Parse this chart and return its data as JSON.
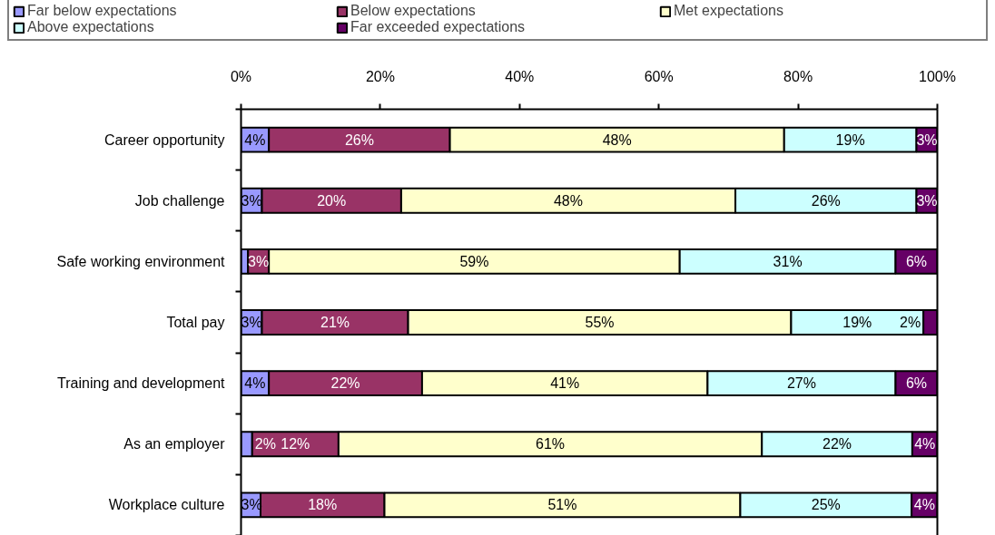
{
  "chart_data": {
    "type": "bar",
    "orientation": "horizontal",
    "stacked": true,
    "categories": [
      "Career opportunity",
      "Job challenge",
      "Safe working environment",
      "Total pay",
      "Training and development",
      "As an employer",
      "Workplace culture"
    ],
    "series": [
      {
        "name": "Far below expectations",
        "color": "#9999ff",
        "values": [
          4,
          3,
          1,
          3,
          4,
          1.6,
          2.8
        ],
        "value_labels": [
          "4%",
          "3%",
          null,
          "3%",
          "4%",
          "2%",
          "3%"
        ]
      },
      {
        "name": "Below expectations",
        "color": "#993366",
        "values": [
          26,
          20,
          3,
          21,
          22,
          12.4,
          17.8
        ],
        "value_labels": [
          "26%",
          "20%",
          "3%",
          "21%",
          "22%",
          "12%",
          "18%"
        ]
      },
      {
        "name": "Met expectations",
        "color": "#ffffcc",
        "values": [
          48,
          48,
          59,
          55,
          41,
          60.8,
          51.1
        ],
        "value_labels": [
          "48%",
          "48%",
          "59%",
          "55%",
          "41%",
          "61%",
          "51%"
        ]
      },
      {
        "name": "Above expectations",
        "color": "#ccffff",
        "values": [
          19,
          26,
          31,
          19,
          27,
          21.6,
          24.6
        ],
        "value_labels": [
          "19%",
          "26%",
          "31%",
          "19%",
          "27%",
          "22%",
          "25%"
        ]
      },
      {
        "name": "Far exceeded expectations",
        "color": "#660066",
        "values": [
          3,
          3,
          6,
          2,
          6,
          3.6,
          3.7
        ],
        "value_labels": [
          "3%",
          "3%",
          "6%",
          "2%",
          "6%",
          "4%",
          "4%"
        ]
      }
    ],
    "xlim": [
      0,
      100
    ],
    "xticks": [
      {
        "value": 0,
        "label": "0%"
      },
      {
        "value": 20,
        "label": "20%"
      },
      {
        "value": 40,
        "label": "40%"
      },
      {
        "value": 60,
        "label": "60%"
      },
      {
        "value": 80,
        "label": "80%"
      },
      {
        "value": 100,
        "label": "100%"
      }
    ],
    "grid": false,
    "legend": "top"
  }
}
